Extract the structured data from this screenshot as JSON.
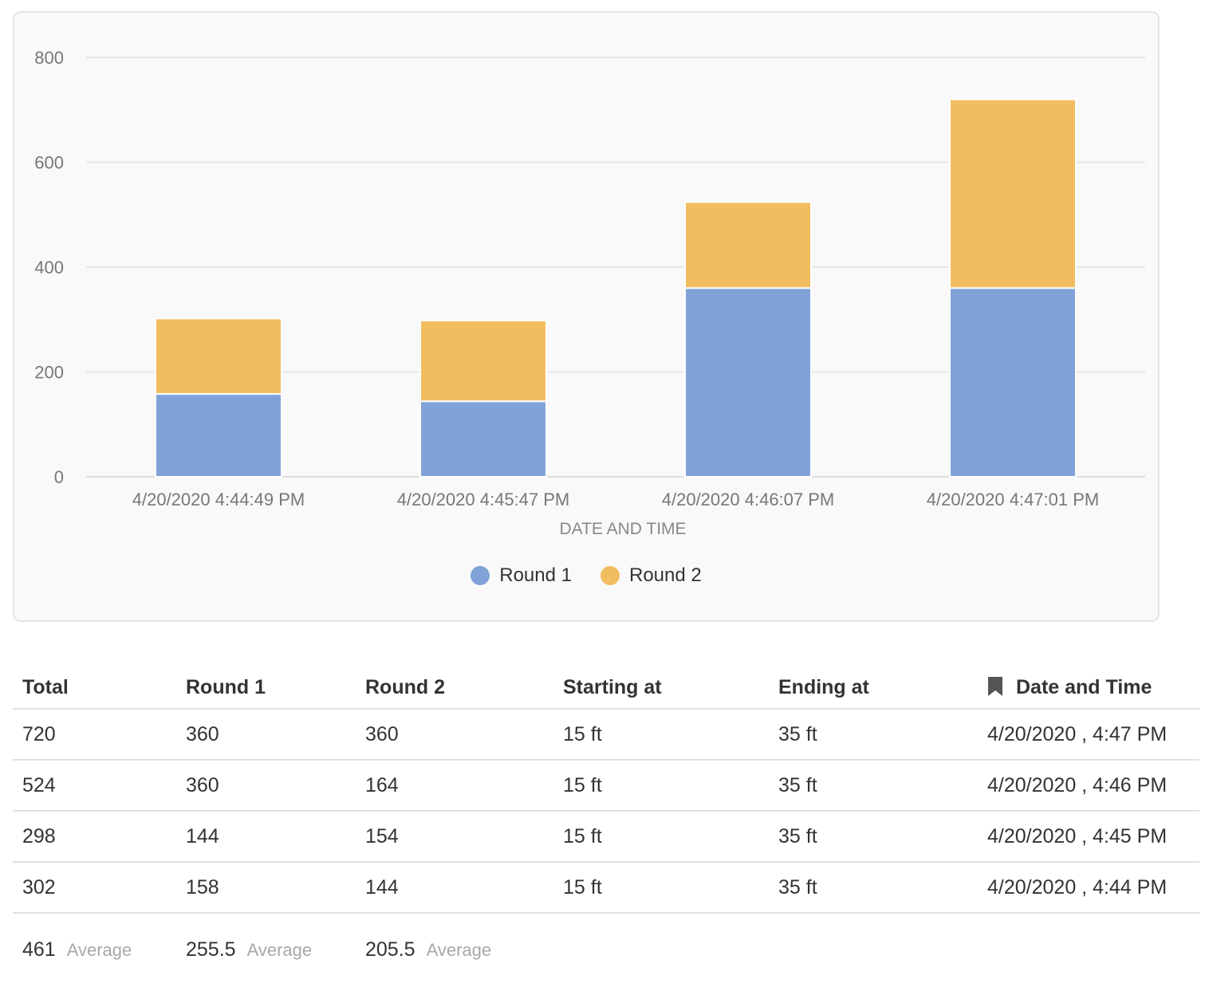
{
  "chart_data": {
    "type": "bar",
    "stacked": true,
    "categories": [
      "4/20/2020 4:44:49 PM",
      "4/20/2020 4:45:47 PM",
      "4/20/2020 4:46:07 PM",
      "4/20/2020 4:47:01 PM"
    ],
    "series": [
      {
        "name": "Round 1",
        "values": [
          158,
          144,
          360,
          360
        ],
        "color": "#80a2d8"
      },
      {
        "name": "Round 2",
        "values": [
          144,
          154,
          164,
          360
        ],
        "color": "#f2bd60"
      }
    ],
    "xlabel": "DATE AND TIME",
    "ylabel": "",
    "ylim": [
      0,
      800
    ],
    "yticks": [
      0,
      200,
      400,
      600,
      800
    ],
    "grid": true,
    "legend_position": "bottom-center"
  },
  "table": {
    "headers": {
      "total": "Total",
      "round1": "Round 1",
      "round2": "Round 2",
      "start": "Starting at",
      "end": "Ending at",
      "datetime": "Date and Time"
    },
    "datetime_icon": "bookmark-icon",
    "rows": [
      {
        "total": "720",
        "round1": "360",
        "round2": "360",
        "start": "15 ft",
        "end": "35 ft",
        "datetime": "4/20/2020 , 4:47 PM"
      },
      {
        "total": "524",
        "round1": "360",
        "round2": "164",
        "start": "15 ft",
        "end": "35 ft",
        "datetime": "4/20/2020 , 4:46 PM"
      },
      {
        "total": "298",
        "round1": "144",
        "round2": "154",
        "start": "15 ft",
        "end": "35 ft",
        "datetime": "4/20/2020 , 4:45 PM"
      },
      {
        "total": "302",
        "round1": "158",
        "round2": "144",
        "start": "15 ft",
        "end": "35 ft",
        "datetime": "4/20/2020 , 4:44 PM"
      }
    ],
    "summary": {
      "total": "461",
      "round1": "255.5",
      "round2": "205.5",
      "label": "Average"
    }
  }
}
